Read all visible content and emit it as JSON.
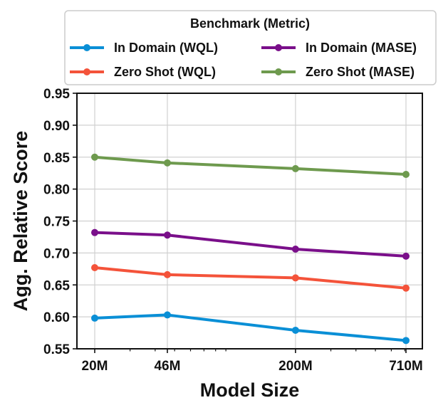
{
  "chart_data": {
    "type": "line",
    "xlabel": "Model Size",
    "ylabel": "Agg. Relative Score",
    "categories": [
      "20M",
      "46M",
      "200M",
      "710M"
    ],
    "x": [
      20,
      46,
      200,
      710
    ],
    "x_scale": "log",
    "ylim": [
      0.55,
      0.95
    ],
    "yticks": [
      0.55,
      0.6,
      0.65,
      0.7,
      0.75,
      0.8,
      0.85,
      0.9,
      0.95
    ],
    "ytick_labels": [
      "0.55",
      "0.60",
      "0.65",
      "0.70",
      "0.75",
      "0.80",
      "0.85",
      "0.90",
      "0.95"
    ],
    "grid": true,
    "legend": {
      "title": "Benchmark (Metric)",
      "placement": "top-center, outside plot, 2 columns"
    },
    "series": [
      {
        "name": "In Domain (WQL)",
        "color": "#0a8fd6",
        "values": [
          0.598,
          0.603,
          0.579,
          0.563
        ]
      },
      {
        "name": "Zero Shot (WQL)",
        "color": "#f4533a",
        "values": [
          0.677,
          0.666,
          0.661,
          0.645
        ]
      },
      {
        "name": "In Domain (MASE)",
        "color": "#7a0f8a",
        "values": [
          0.732,
          0.728,
          0.706,
          0.695
        ]
      },
      {
        "name": "Zero Shot (MASE)",
        "color": "#6e9a4e",
        "values": [
          0.85,
          0.841,
          0.832,
          0.823
        ]
      }
    ]
  }
}
